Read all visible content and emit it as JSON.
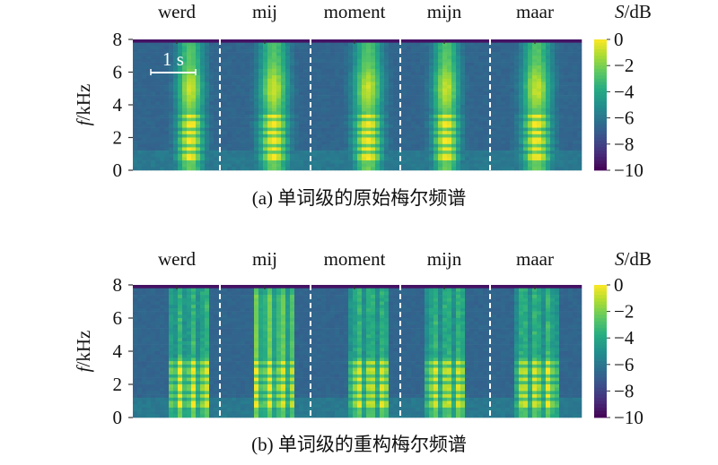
{
  "chart_data": [
    {
      "type": "heatmap",
      "panel": "a",
      "caption": "(a) 单词级的原始梅尔频谱",
      "words": [
        "werd",
        "mij",
        "moment",
        "mijn",
        "maar"
      ],
      "ylabel_italic": "f",
      "ylabel_rest": "/kHz",
      "ylim": [
        0,
        8
      ],
      "yticks": [
        "0",
        "2",
        "4",
        "6",
        "8"
      ],
      "colorbar": {
        "label_italic": "S",
        "label_rest": "/dB",
        "range": [
          -10,
          0
        ],
        "ticks": [
          "0",
          "−2",
          "−4",
          "−6",
          "−8",
          "−10"
        ],
        "colormap": "viridis"
      },
      "scale_bar": "1 s",
      "segment_divider": "dashed white"
    },
    {
      "type": "heatmap",
      "panel": "b",
      "caption": "(b) 单词级的重构梅尔频谱",
      "words": [
        "werd",
        "mij",
        "moment",
        "mijn",
        "maar"
      ],
      "ylabel_italic": "f",
      "ylabel_rest": "/kHz",
      "ylim": [
        0,
        8
      ],
      "yticks": [
        "0",
        "2",
        "4",
        "6",
        "8"
      ],
      "colorbar": {
        "label_italic": "S",
        "label_rest": "/dB",
        "range": [
          -10,
          0
        ],
        "ticks": [
          "0",
          "−2",
          "−4",
          "−6",
          "−8",
          "−10"
        ],
        "colormap": "viridis"
      },
      "segment_divider": "dashed white"
    }
  ]
}
